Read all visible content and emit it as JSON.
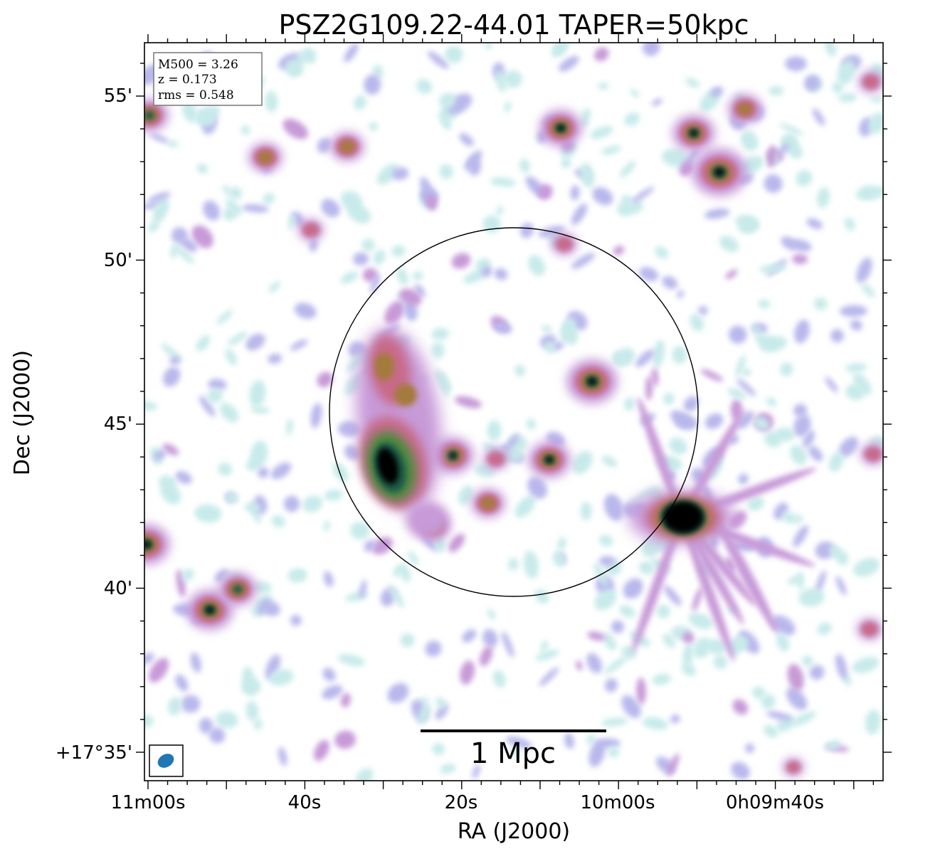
{
  "chart_data": {
    "type": "heatmap",
    "title": "PSZ2G109.22-44.01 TAPER=50kpc",
    "xlabel": "RA (J2000)",
    "ylabel": "Dec (J2000)",
    "x_ticks": [
      "11m00s",
      "40s",
      "20s",
      "10m00s",
      "0h09m40s"
    ],
    "y_ticks": [
      "+17°35'",
      "40'",
      "45'",
      "50'",
      "55'"
    ],
    "info_box": [
      "M500 = 3.26",
      "z = 0.173",
      "rms = 0.548"
    ],
    "scale_bar_label": "1 Mpc",
    "grid": false,
    "colormap": [
      "#ffffff",
      "#c8eaea",
      "#b9b8ec",
      "#c79ad8",
      "#c86a8a",
      "#a47a3c",
      "#4e8a3e",
      "#1e5a48",
      "#000000"
    ],
    "beam_color": "#1f77b4"
  }
}
